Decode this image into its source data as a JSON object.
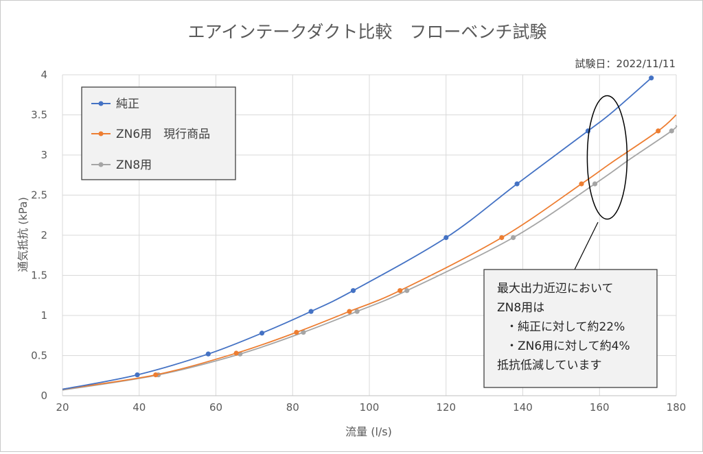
{
  "chart_data": {
    "type": "line",
    "title": "エアインテークダクト比較　フローベンチ試験",
    "subtitle": "試験日：2022/11/11",
    "xlabel": "流量 (l/s)",
    "ylabel": "通気抵抗 (kPa)",
    "xlim": [
      20,
      180
    ],
    "ylim": [
      0,
      4
    ],
    "xticks": [
      "20",
      "40",
      "60",
      "80",
      "100",
      "120",
      "140",
      "160",
      "180"
    ],
    "yticks": [
      "0",
      "0.5",
      "1",
      "1.5",
      "2",
      "2.5",
      "3",
      "3.5",
      "4"
    ],
    "grid": true,
    "legend_position": "top-left",
    "series": [
      {
        "name": "純正",
        "color": "#4472c4",
        "points": [
          [
            39.5,
            0.26
          ],
          [
            58.0,
            0.52
          ],
          [
            72.0,
            0.78
          ],
          [
            84.8,
            1.05
          ],
          [
            95.8,
            1.31
          ],
          [
            120.0,
            1.97
          ],
          [
            138.5,
            2.64
          ],
          [
            157.0,
            3.3
          ],
          [
            173.5,
            3.96
          ]
        ],
        "curve": [
          [
            20,
            0.08
          ],
          [
            39.5,
            0.26
          ],
          [
            58.0,
            0.52
          ],
          [
            72.0,
            0.78
          ],
          [
            84.8,
            1.05
          ],
          [
            95.8,
            1.31
          ],
          [
            120.0,
            1.97
          ],
          [
            138.5,
            2.64
          ],
          [
            157.0,
            3.3
          ],
          [
            163.0,
            3.52
          ],
          [
            173.5,
            3.96
          ]
        ]
      },
      {
        "name": "ZN6用　現行商品",
        "color": "#ed7d31",
        "points": [
          [
            44.3,
            0.26
          ],
          [
            65.3,
            0.53
          ],
          [
            81.0,
            0.79
          ],
          [
            94.8,
            1.05
          ],
          [
            108.0,
            1.31
          ],
          [
            134.5,
            1.97
          ],
          [
            155.3,
            2.64
          ],
          [
            175.3,
            3.3
          ]
        ],
        "curve": [
          [
            20,
            0.08
          ],
          [
            44.3,
            0.26
          ],
          [
            65.3,
            0.53
          ],
          [
            81.0,
            0.79
          ],
          [
            94.8,
            1.05
          ],
          [
            108.0,
            1.31
          ],
          [
            134.5,
            1.97
          ],
          [
            155.3,
            2.64
          ],
          [
            163.0,
            2.9
          ],
          [
            175.3,
            3.3
          ],
          [
            180,
            3.5
          ]
        ]
      },
      {
        "name": "ZN8用",
        "color": "#a5a5a5",
        "points": [
          [
            45.0,
            0.26
          ],
          [
            66.3,
            0.52
          ],
          [
            82.8,
            0.79
          ],
          [
            96.8,
            1.05
          ],
          [
            109.8,
            1.31
          ],
          [
            137.5,
            1.97
          ],
          [
            158.8,
            2.64
          ],
          [
            178.8,
            3.3
          ]
        ],
        "curve": [
          [
            20,
            0.07
          ],
          [
            45.0,
            0.26
          ],
          [
            66.3,
            0.52
          ],
          [
            82.8,
            0.79
          ],
          [
            96.8,
            1.05
          ],
          [
            109.8,
            1.31
          ],
          [
            137.5,
            1.97
          ],
          [
            158.8,
            2.64
          ],
          [
            168.0,
            2.95
          ],
          [
            178.8,
            3.3
          ],
          [
            180,
            3.37
          ]
        ]
      }
    ],
    "annotation": {
      "lines": [
        "最大出力近辺において",
        "ZN8用は",
        "・純正に対して約22%",
        "・ZN6用に対して約4%",
        "抵抗低減しています"
      ],
      "ellipse_center": [
        162,
        2.97
      ]
    }
  }
}
